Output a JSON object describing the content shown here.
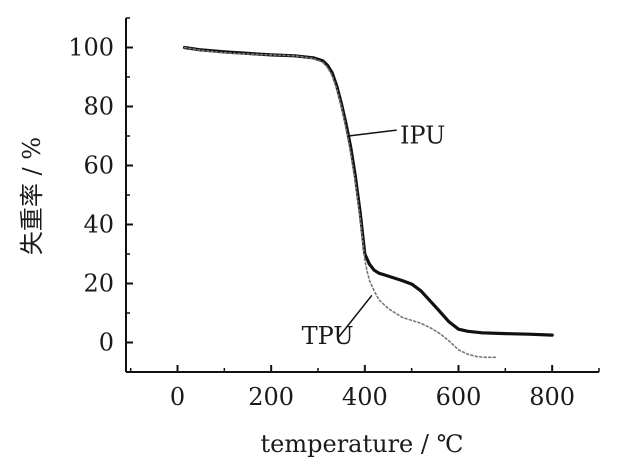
{
  "chart_data": {
    "type": "line",
    "xlabel": "temperature / ℃",
    "ylabel": "失重率 / %",
    "xlim": [
      -110,
      900
    ],
    "ylim": [
      -10,
      110
    ],
    "xticks": [
      0,
      200,
      400,
      600,
      800
    ],
    "yticks": [
      0,
      20,
      40,
      60,
      80,
      100
    ],
    "grid": false,
    "series": [
      {
        "name": "IPU",
        "style": "solid",
        "color": "#111111",
        "x": [
          15,
          50,
          100,
          150,
          200,
          250,
          290,
          310,
          320,
          330,
          340,
          350,
          360,
          370,
          380,
          385,
          390,
          395,
          400,
          410,
          420,
          430,
          450,
          480,
          500,
          520,
          540,
          560,
          580,
          600,
          620,
          650,
          700,
          750,
          800
        ],
        "y": [
          100,
          99.2,
          98.5,
          98,
          97.5,
          97.2,
          96.5,
          95.5,
          94,
          91.5,
          87,
          81,
          74,
          66,
          56,
          50,
          44,
          37,
          30,
          26.5,
          24.5,
          23.5,
          22.5,
          21,
          19.8,
          17.5,
          14,
          10.5,
          7,
          4.5,
          3.8,
          3.3,
          3,
          2.8,
          2.5
        ]
      },
      {
        "name": "TPU",
        "style": "dotted",
        "color": "#777777",
        "x": [
          15,
          50,
          100,
          150,
          200,
          250,
          290,
          310,
          320,
          330,
          340,
          350,
          360,
          370,
          380,
          385,
          390,
          395,
          400,
          405,
          410,
          420,
          425,
          430,
          450,
          480,
          500,
          520,
          540,
          560,
          580,
          600,
          620,
          640,
          660,
          680
        ],
        "y": [
          100,
          99,
          98.2,
          97.8,
          97.5,
          97.2,
          96.3,
          95,
          93.3,
          90.5,
          86,
          80,
          72.5,
          64,
          54,
          48,
          42,
          35,
          28,
          24,
          21,
          17.5,
          16,
          14.5,
          11.5,
          8.5,
          7.5,
          6.5,
          5,
          3,
          0.5,
          -2.5,
          -4,
          -4.8,
          -5,
          -5
        ]
      }
    ]
  }
}
